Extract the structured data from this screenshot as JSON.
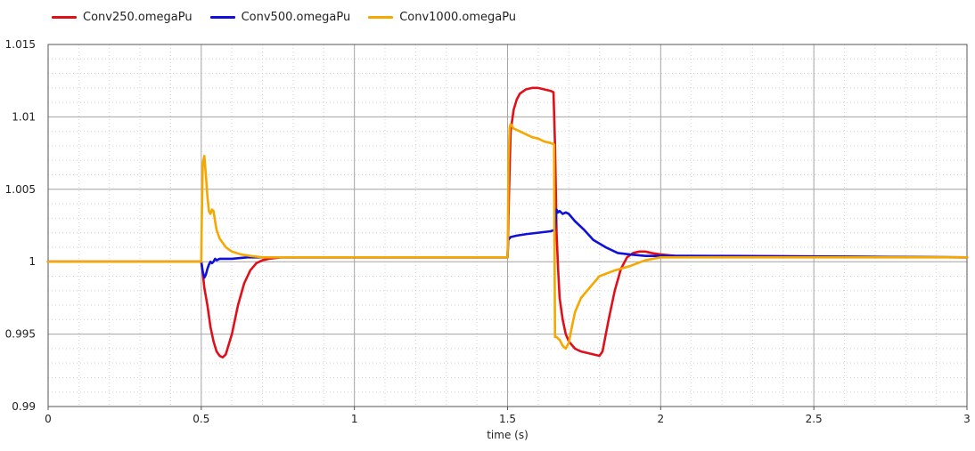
{
  "chart_data": {
    "type": "line",
    "xlabel": "time (s)",
    "ylabel": "",
    "xlim": [
      0,
      3
    ],
    "ylim": [
      0.99,
      1.015
    ],
    "x_ticks": [
      "0",
      "0.5",
      "1",
      "1.5",
      "2",
      "2.5",
      "3"
    ],
    "x_tick_values": [
      0,
      0.5,
      1,
      1.5,
      2,
      2.5,
      3
    ],
    "y_ticks": [
      "0.99",
      "0.995",
      "1",
      "1.005",
      "1.01",
      "1.015"
    ],
    "y_tick_values": [
      0.99,
      0.995,
      1,
      1.005,
      1.01,
      1.015
    ],
    "grid": true,
    "legend_position": "top-left",
    "series": [
      {
        "name": "Conv250.omegaPu",
        "color": "#e0101a",
        "x": [
          0,
          0.5,
          0.505,
          0.51,
          0.52,
          0.53,
          0.54,
          0.55,
          0.56,
          0.57,
          0.58,
          0.6,
          0.62,
          0.64,
          0.66,
          0.68,
          0.7,
          0.72,
          0.76,
          0.84,
          1.5,
          1.501,
          1.505,
          1.51,
          1.52,
          1.53,
          1.54,
          1.56,
          1.58,
          1.6,
          1.62,
          1.64,
          1.65,
          1.655,
          1.66,
          1.665,
          1.67,
          1.68,
          1.69,
          1.7,
          1.72,
          1.74,
          1.76,
          1.78,
          1.8,
          1.81,
          1.83,
          1.85,
          1.87,
          1.89,
          1.91,
          1.93,
          1.95,
          1.97,
          2.0,
          2.05,
          2.1,
          2.24,
          3.0
        ],
        "y": [
          1.0,
          1.0,
          0.9992,
          0.9982,
          0.997,
          0.9955,
          0.9945,
          0.9938,
          0.9935,
          0.9934,
          0.9936,
          0.995,
          0.997,
          0.9985,
          0.9994,
          0.9999,
          1.0001,
          1.0002,
          1.0003,
          1.0003,
          1.0003,
          1.001,
          1.005,
          1.009,
          1.0105,
          1.0112,
          1.0116,
          1.0119,
          1.012,
          1.012,
          1.0119,
          1.0118,
          1.0117,
          1.008,
          1.002,
          0.9995,
          0.9975,
          0.996,
          0.995,
          0.9945,
          0.994,
          0.9938,
          0.9937,
          0.9936,
          0.9935,
          0.9938,
          0.996,
          0.998,
          0.9995,
          1.0003,
          1.0006,
          1.0007,
          1.0007,
          1.0006,
          1.0005,
          1.0004,
          1.0004,
          1.0004,
          1.0003
        ]
      },
      {
        "name": "Conv500.omegaPu",
        "color": "#1010d8",
        "x": [
          0,
          0.5,
          0.505,
          0.51,
          0.515,
          0.52,
          0.525,
          0.53,
          0.535,
          0.54,
          0.545,
          0.55,
          0.56,
          0.58,
          0.6,
          0.65,
          0.7,
          0.84,
          1.5,
          1.502,
          1.51,
          1.53,
          1.56,
          1.6,
          1.64,
          1.655,
          1.66,
          1.665,
          1.67,
          1.68,
          1.69,
          1.7,
          1.72,
          1.75,
          1.78,
          1.82,
          1.86,
          1.9,
          1.95,
          2.0,
          2.1,
          3.0
        ],
        "y": [
          1.0,
          1.0,
          0.9993,
          0.9989,
          0.9991,
          0.9995,
          0.9998,
          1.0,
          0.9999,
          1.0,
          1.0002,
          1.0001,
          1.0002,
          1.0002,
          1.0002,
          1.0003,
          1.0003,
          1.0003,
          1.0003,
          1.0015,
          1.0017,
          1.0018,
          1.0019,
          1.002,
          1.0021,
          1.0022,
          1.0036,
          1.0034,
          1.0035,
          1.0033,
          1.0034,
          1.0033,
          1.0028,
          1.0022,
          1.0015,
          1.001,
          1.0006,
          1.0005,
          1.0004,
          1.0004,
          1.0004,
          1.0003
        ]
      },
      {
        "name": "Conv1000.omegaPu",
        "color": "#f5a800",
        "x": [
          0,
          0.5,
          0.501,
          0.505,
          0.51,
          0.515,
          0.52,
          0.525,
          0.53,
          0.535,
          0.54,
          0.545,
          0.55,
          0.56,
          0.58,
          0.6,
          0.63,
          0.66,
          0.7,
          0.76,
          1.0,
          1.5,
          1.501,
          1.503,
          1.507,
          1.51,
          1.52,
          1.54,
          1.56,
          1.58,
          1.6,
          1.62,
          1.64,
          1.652,
          1.653,
          1.655,
          1.66,
          1.67,
          1.68,
          1.69,
          1.7,
          1.71,
          1.72,
          1.73,
          1.74,
          1.76,
          1.8,
          1.85,
          1.9,
          1.95,
          2.0,
          2.1,
          3.0
        ],
        "y": [
          1.0,
          1.0,
          1.002,
          1.0068,
          1.0073,
          1.006,
          1.0045,
          1.0035,
          1.0033,
          1.0036,
          1.0035,
          1.0028,
          1.0022,
          1.0016,
          1.001,
          1.0007,
          1.0005,
          1.0004,
          1.0003,
          1.0003,
          1.0003,
          1.0003,
          1.0015,
          1.007,
          1.0093,
          1.0095,
          1.0092,
          1.009,
          1.0088,
          1.0086,
          1.0085,
          1.0083,
          1.0082,
          1.0081,
          1.002,
          0.9948,
          0.9948,
          0.9946,
          0.9942,
          0.994,
          0.9944,
          0.9955,
          0.9965,
          0.997,
          0.9975,
          0.998,
          0.999,
          0.9994,
          0.9997,
          1.0001,
          1.0003,
          1.0003,
          1.0003
        ]
      }
    ]
  }
}
